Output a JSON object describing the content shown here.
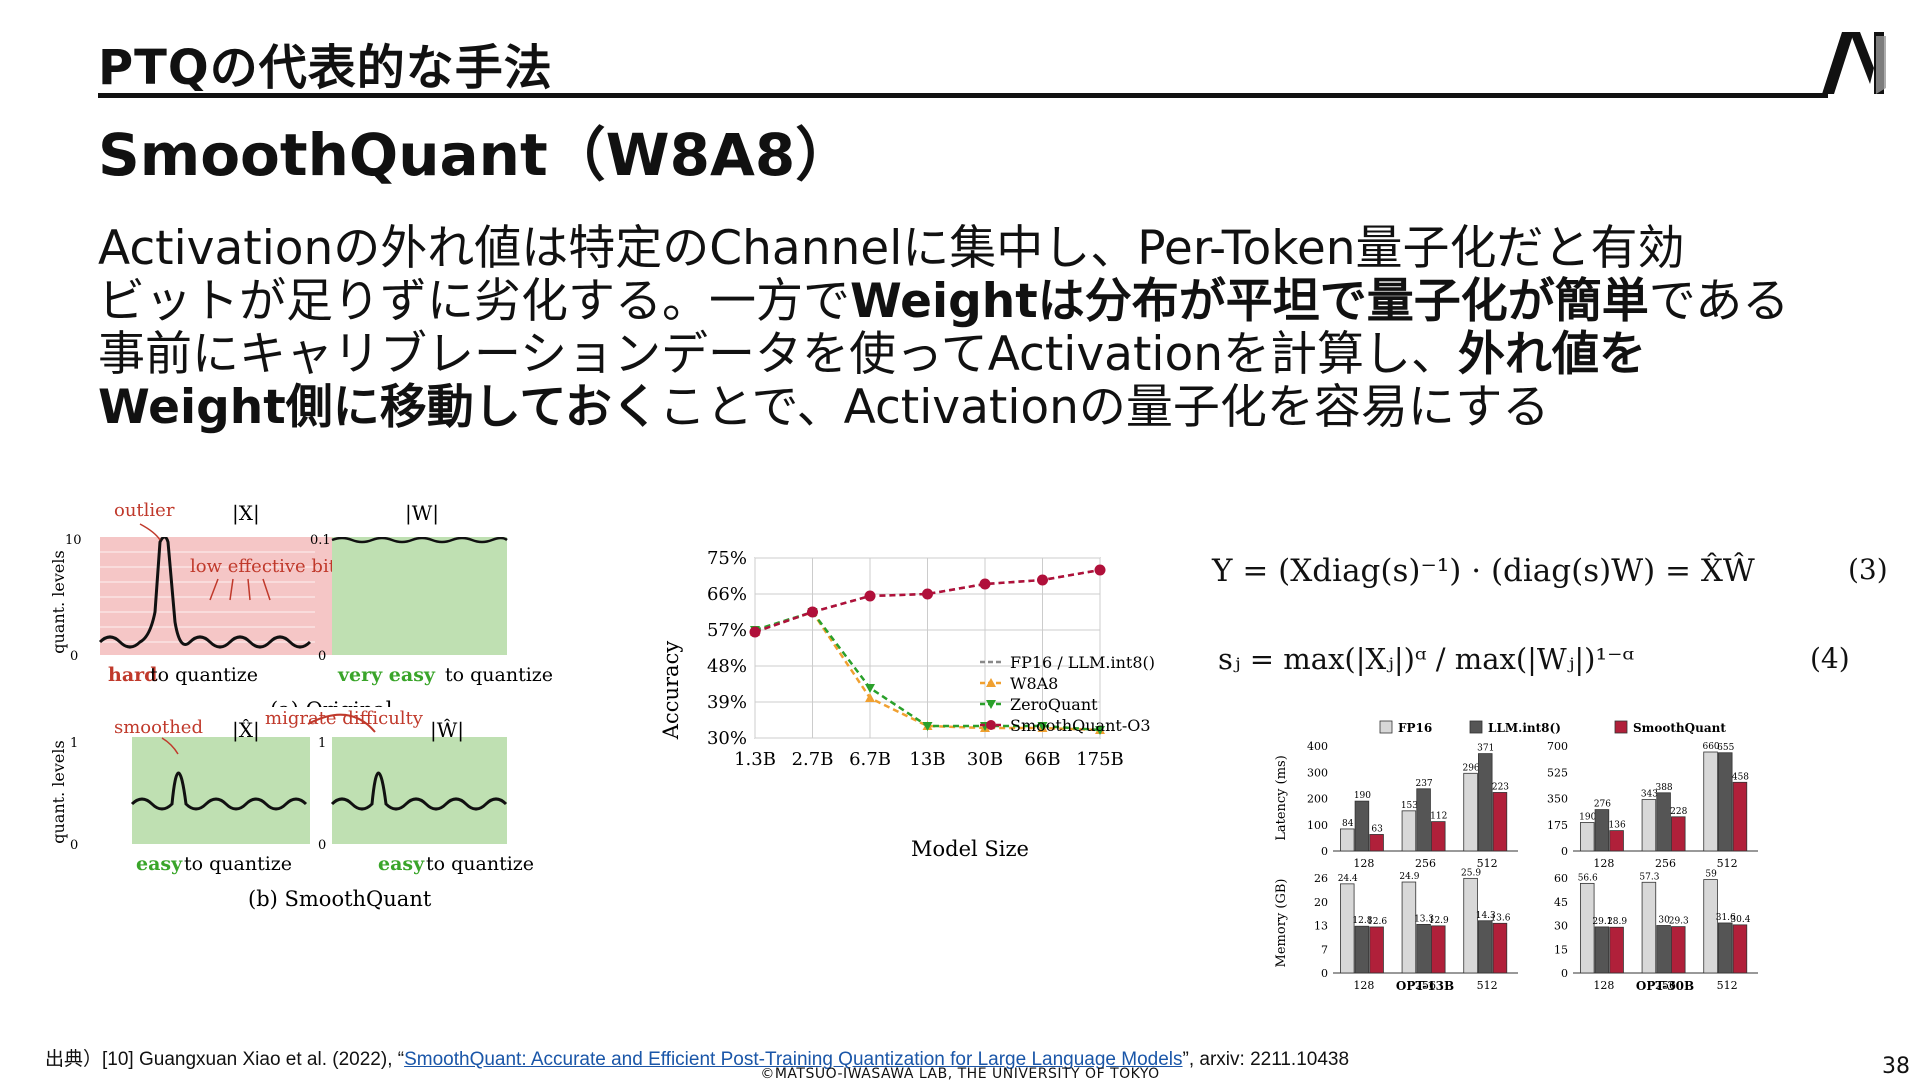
{
  "header": {
    "title": "PTQの代表的な手法"
  },
  "subtitle": "SmoothQuant（W8A8）",
  "body": {
    "l1": "Activationの外れ値は特定のChannelに集中し、Per-Token量子化だと有効",
    "l2a": "ビットが足りずに劣化する。一方で",
    "l2b": "Weightは分布が平坦で量子化が簡単",
    "l2c": "である",
    "l3a": "事前にキャリブレーションデータを使ってActivationを計算し、",
    "l3b": "外れ値を",
    "l4a": "Weight側に移動しておく",
    "l4b": "ことで、Activationの量子化を容易にする"
  },
  "fig_left": {
    "outlier": "outlier",
    "X": "|X|",
    "W": "|W|",
    "Xhat": "|X̂|",
    "What": "|Ŵ|",
    "ylabel": "quant. levels",
    "y10": "10",
    "y0a": "0",
    "y01": "0.1",
    "y0b": "0",
    "y1a": "1",
    "y0c": "0",
    "y1b": "1",
    "y0d": "0",
    "low_bits": "low effective bits",
    "hard": "hard",
    "very_easy": "very easy",
    "easy": "easy",
    "to_quantize": "to quantize",
    "cap_a": "(a) Original",
    "smoothed": "smoothed",
    "migrate": "migrate difficulty",
    "cap_b": "(b) SmoothQuant",
    "colors": {
      "red_fill": "#f5c6c6",
      "green_fill": "#bfe0b2",
      "red_text": "#c0392b",
      "green_text": "#3aa52a"
    }
  },
  "chart_data": [
    {
      "type": "line",
      "categories": [
        "1.3B",
        "2.7B",
        "6.7B",
        "13B",
        "30B",
        "66B",
        "175B"
      ],
      "series": [
        {
          "name": "FP16 / LLM.int8()",
          "values": [
            56.5,
            61.5,
            65.5,
            66,
            68.5,
            69.5,
            72
          ],
          "color": "#888888"
        },
        {
          "name": "W8A8",
          "values": [
            56.5,
            61.5,
            40,
            33,
            32.5,
            32.5,
            32
          ],
          "color": "#f0a030"
        },
        {
          "name": "ZeroQuant",
          "values": [
            57,
            61.5,
            42.5,
            33,
            33,
            33,
            32
          ],
          "color": "#2aa02a"
        },
        {
          "name": "SmoothQuant-O3",
          "values": [
            56.5,
            61.5,
            65.5,
            66,
            68.5,
            69.5,
            72
          ],
          "color": "#b0103a"
        }
      ],
      "yticks": [
        "75%",
        "66%",
        "57%",
        "48%",
        "39%",
        "30%"
      ],
      "xlabel": "Model Size",
      "ylabel": "Accuracy",
      "ylim": [
        30,
        75
      ]
    },
    {
      "type": "bar",
      "legend": [
        "FP16",
        "LLM.int8()",
        "SmoothQuant"
      ],
      "colors": [
        "#d8d8d8",
        "#555555",
        "#b0203a"
      ],
      "panels": [
        {
          "group": "OPT-13B",
          "metric": "Latency (ms)",
          "categories": [
            "128",
            "256",
            "512"
          ],
          "values": [
            [
              84,
              190,
              63
            ],
            [
              153,
              237,
              112
            ],
            [
              296,
              371,
              223
            ]
          ],
          "yticks": [
            "400",
            "300",
            "200",
            "100",
            "0"
          ],
          "ylim": [
            0,
            400
          ]
        },
        {
          "group": "OPT-30B",
          "metric": "Latency (ms)",
          "categories": [
            "128",
            "256",
            "512"
          ],
          "values": [
            [
              190,
              276,
              136
            ],
            [
              343,
              388,
              228
            ],
            [
              660,
              655,
              458
            ]
          ],
          "yticks": [
            "700",
            "525",
            "350",
            "175",
            "0"
          ],
          "ylim": [
            0,
            700
          ]
        },
        {
          "group": "OPT-13B",
          "metric": "Memory (GB)",
          "categories": [
            "128",
            "256",
            "512"
          ],
          "values": [
            [
              24.4,
              12.8,
              12.6
            ],
            [
              24.9,
              13.3,
              12.9
            ],
            [
              25.9,
              14.3,
              13.6
            ]
          ],
          "yticks": [
            "26",
            "20",
            "13",
            "7",
            "0"
          ],
          "ylim": [
            0,
            26
          ]
        },
        {
          "group": "OPT-30B",
          "metric": "Memory (GB)",
          "categories": [
            "128",
            "256",
            "512"
          ],
          "values": [
            [
              56.6,
              29.1,
              28.9
            ],
            [
              57.3,
              30.0,
              29.3
            ],
            [
              59.0,
              31.6,
              30.4
            ]
          ],
          "yticks": [
            "60",
            "45",
            "30",
            "15",
            "0"
          ],
          "ylim": [
            0,
            60
          ]
        }
      ],
      "groups": [
        "OPT-13B",
        "OPT-30B"
      ]
    }
  ],
  "equations": {
    "eq1": "Y = (Xdiag(s)⁻¹) · (diag(s)W) = X̂Ŵ",
    "eq1_num": "(3)",
    "eq2": "sⱼ = max(|Xⱼ|)ᵅ / max(|Wⱼ|)¹⁻ᵅ",
    "eq2_num": "(4)"
  },
  "footer": {
    "cite_prefix": "出典）[10] Guangxuan Xiao et al. (2022), “",
    "cite_link": "SmoothQuant: Accurate and Efficient Post-Training Quantization for Large Language Models",
    "cite_suffix": "”, arxiv: 2211.10438",
    "copyright": "©MATSUO-IWASAWA LAB, THE UNIVERSITY OF TOKYO",
    "page": "38"
  }
}
